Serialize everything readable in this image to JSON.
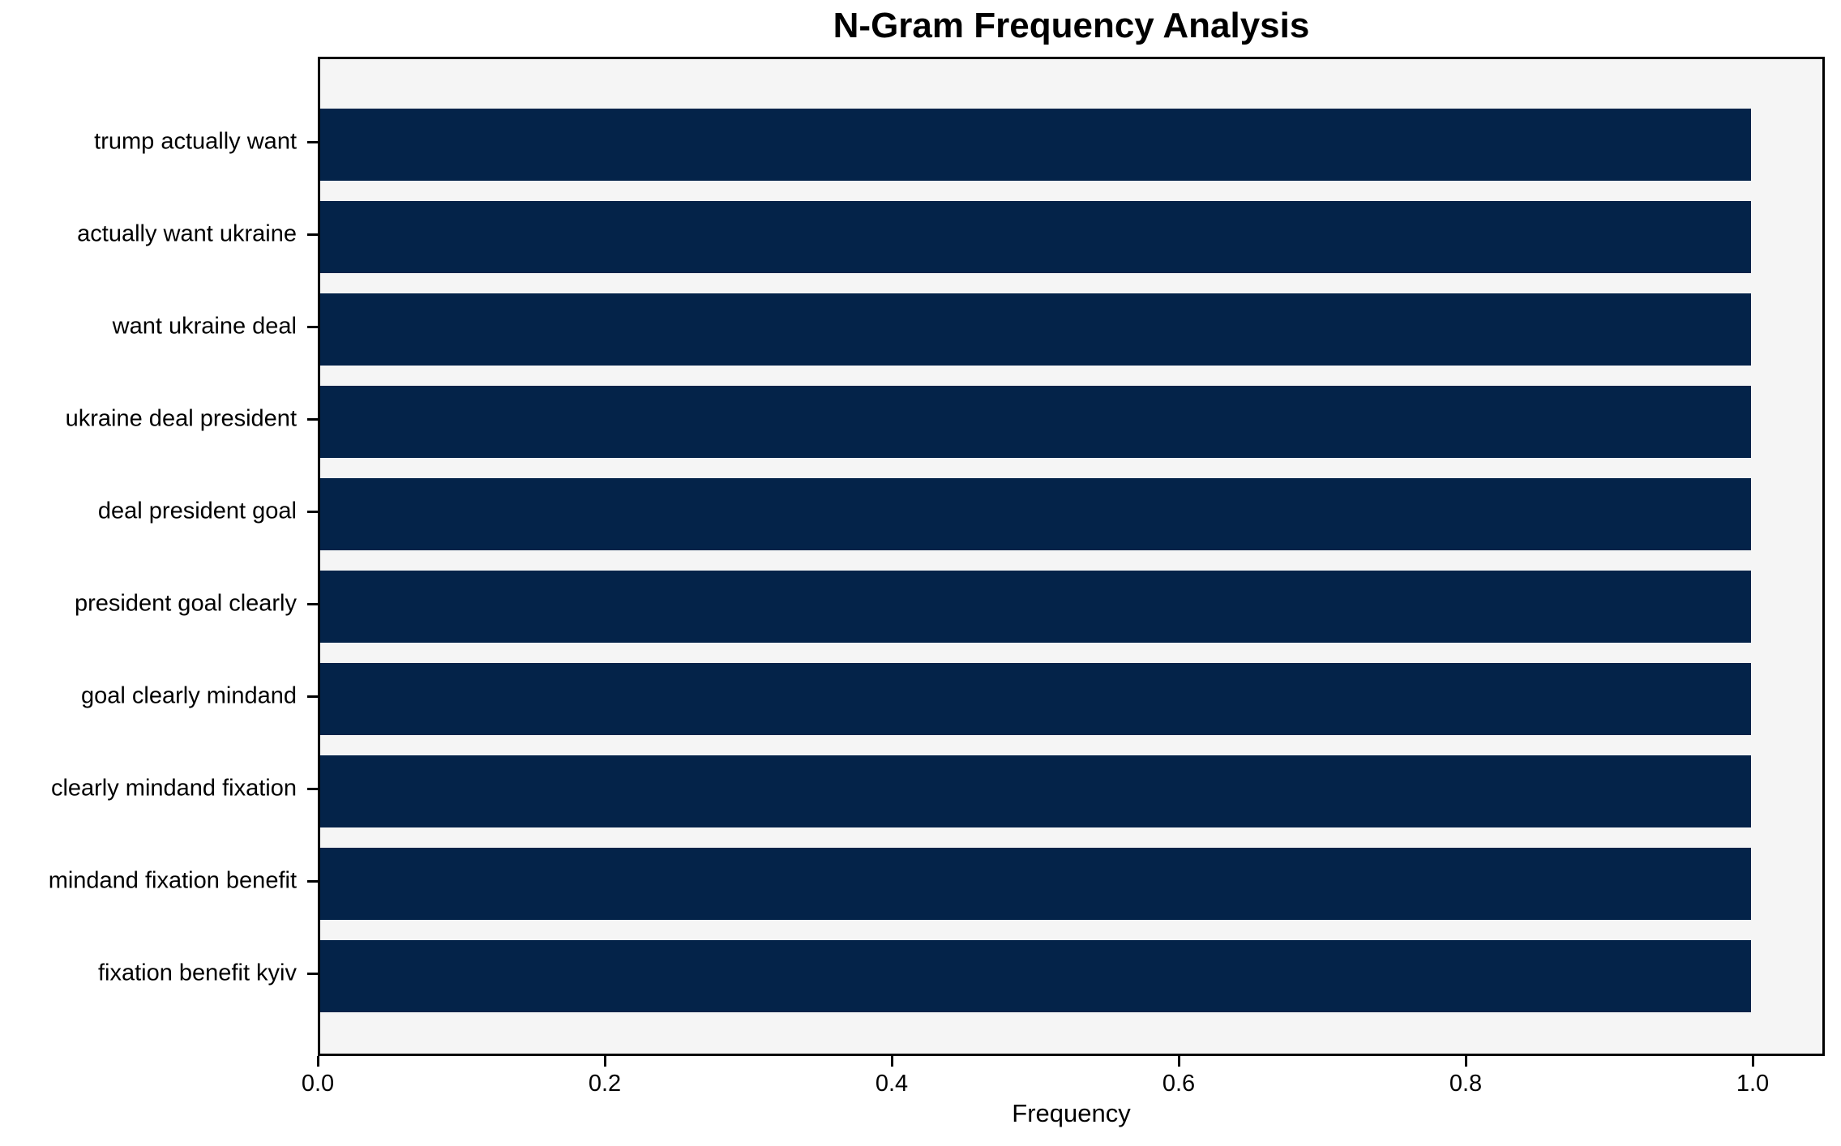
{
  "chart_data": {
    "type": "bar",
    "orientation": "horizontal",
    "title": "N-Gram Frequency Analysis",
    "xlabel": "Frequency",
    "ylabel": "",
    "categories": [
      "trump actually want",
      "actually want ukraine",
      "want ukraine deal",
      "ukraine deal president",
      "deal president goal",
      "president goal clearly",
      "goal clearly mindand",
      "clearly mindand fixation",
      "mindand fixation benefit",
      "fixation benefit kyiv"
    ],
    "values": [
      1.0,
      1.0,
      1.0,
      1.0,
      1.0,
      1.0,
      1.0,
      1.0,
      1.0,
      1.0
    ],
    "xlim": [
      0,
      1.05
    ],
    "xtick_values": [
      0.0,
      0.2,
      0.4,
      0.6,
      0.8,
      1.0
    ],
    "xtick_labels": [
      "0.0",
      "0.2",
      "0.4",
      "0.6",
      "0.8",
      "1.0"
    ],
    "grid": false,
    "legend": null,
    "colors": {
      "bar": "#042349",
      "plot_background": "#f5f5f5",
      "figure_background": "#ffffff",
      "axis": "#000000",
      "text": "#000000"
    }
  }
}
